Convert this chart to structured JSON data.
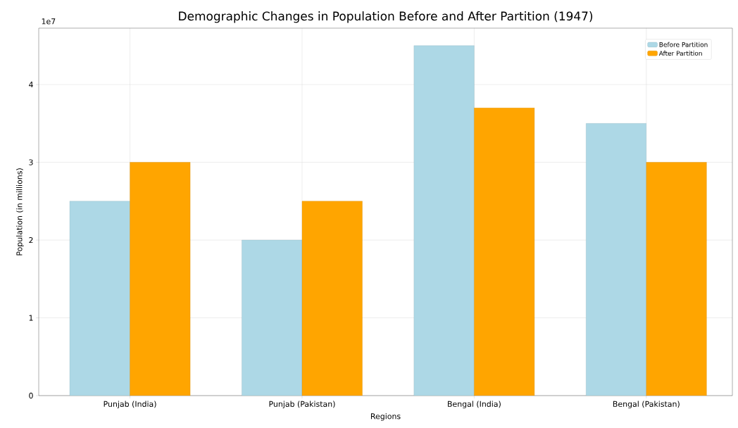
{
  "chart_data": {
    "type": "bar",
    "title": "Demographic Changes in Population Before and After Partition (1947)",
    "xlabel": "Regions",
    "ylabel": "Population (in millions)",
    "categories": [
      "Punjab (India)",
      "Punjab (Pakistan)",
      "Bengal (India)",
      "Bengal (Pakistan)"
    ],
    "series": [
      {
        "name": "Before Partition",
        "color": "#add8e6",
        "values": [
          2.5,
          2.0,
          4.5,
          3.5
        ]
      },
      {
        "name": "After Partition",
        "color": "#ffa500",
        "values": [
          3.0,
          2.5,
          3.7,
          3.0
        ]
      }
    ],
    "ylim": [
      0,
      4.725
    ],
    "yticks": [
      0,
      1,
      2,
      3,
      4
    ],
    "annotations": [
      "1e7"
    ],
    "grid": true,
    "legend": "top right"
  }
}
